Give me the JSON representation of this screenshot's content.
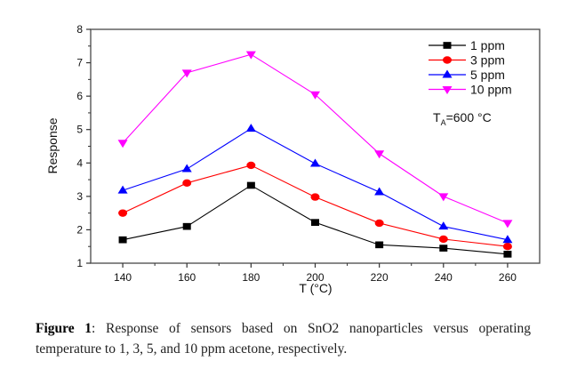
{
  "chart_data": {
    "type": "line",
    "title": "",
    "xlabel": "T (°C)",
    "ylabel": "Response",
    "x": [
      140,
      160,
      180,
      200,
      220,
      240,
      260
    ],
    "xlim": [
      130,
      270
    ],
    "ylim": [
      1,
      8
    ],
    "xticks": [
      140,
      160,
      180,
      200,
      220,
      240,
      260
    ],
    "yticks": [
      1,
      2,
      3,
      4,
      5,
      6,
      7,
      8
    ],
    "grid": false,
    "legend_position": "top-right",
    "series": [
      {
        "name": "1 ppm",
        "color": "#000000",
        "marker": "square",
        "values": [
          1.7,
          2.1,
          3.33,
          2.22,
          1.55,
          1.45,
          1.27
        ]
      },
      {
        "name": "3 ppm",
        "color": "#ff0000",
        "marker": "circle",
        "values": [
          2.5,
          3.4,
          3.93,
          2.98,
          2.2,
          1.72,
          1.5
        ]
      },
      {
        "name": "5 ppm",
        "color": "#0000ff",
        "marker": "triangle-up",
        "values": [
          3.18,
          3.82,
          5.03,
          3.98,
          3.13,
          2.1,
          1.7
        ]
      },
      {
        "name": "10 ppm",
        "color": "#ff00ff",
        "marker": "triangle-down",
        "values": [
          4.6,
          6.7,
          7.25,
          6.05,
          4.28,
          3.0,
          2.2
        ]
      }
    ],
    "annotations": [
      {
        "text_main": "T",
        "text_sub": "A",
        "text_rest": "=600 °C",
        "position": "right, below legend"
      }
    ]
  },
  "caption": {
    "label": "Figure 1",
    "text": ": Response of sensors based on SnO2 nanoparticles versus operating temperature to 1, 3, 5, and 10 ppm acetone, respectively."
  }
}
